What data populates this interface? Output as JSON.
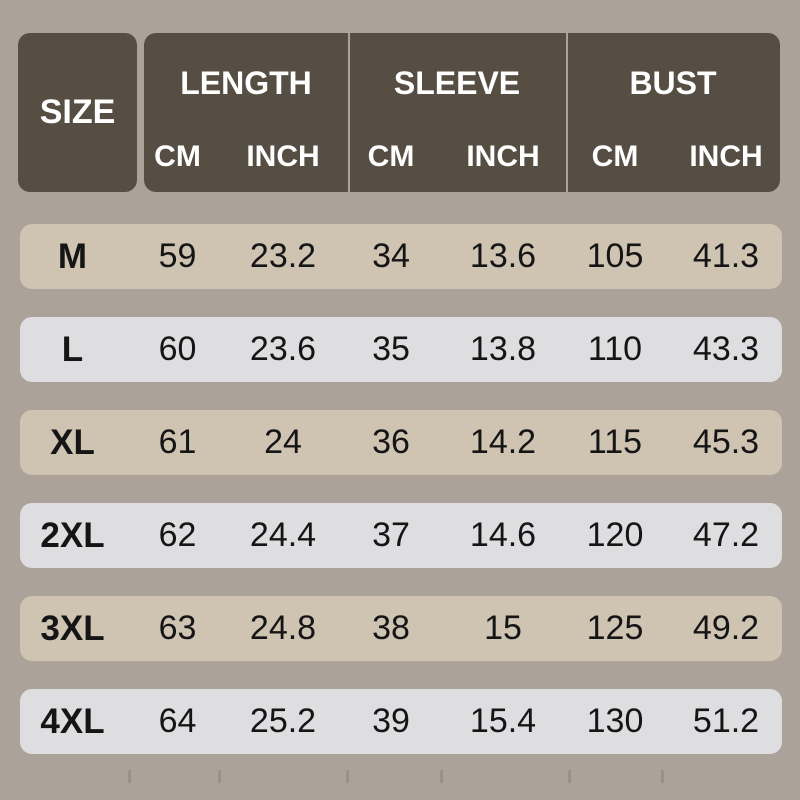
{
  "colors": {
    "page_bg": "#aba39a",
    "header_bg": "#564e43",
    "header_text": "#ffffff",
    "row_tan": "#cfc3b2",
    "row_gray": "#dedde0",
    "data_text": "#151515"
  },
  "chart_data": {
    "type": "table",
    "corner_header": "SIZE",
    "column_groups": [
      {
        "label": "LENGTH",
        "subcolumns": [
          "CM",
          "INCH"
        ]
      },
      {
        "label": "SLEEVE",
        "subcolumns": [
          "CM",
          "INCH"
        ]
      },
      {
        "label": "BUST",
        "subcolumns": [
          "CM",
          "INCH"
        ]
      }
    ],
    "rows": [
      {
        "size": "M",
        "values": [
          "59",
          "23.2",
          "34",
          "13.6",
          "105",
          "41.3"
        ]
      },
      {
        "size": "L",
        "values": [
          "60",
          "23.6",
          "35",
          "13.8",
          "110",
          "43.3"
        ]
      },
      {
        "size": "XL",
        "values": [
          "61",
          "24",
          "36",
          "14.2",
          "115",
          "45.3"
        ]
      },
      {
        "size": "2XL",
        "values": [
          "62",
          "24.4",
          "37",
          "14.6",
          "120",
          "47.2"
        ]
      },
      {
        "size": "3XL",
        "values": [
          "63",
          "24.8",
          "38",
          "15",
          "125",
          "49.2"
        ]
      },
      {
        "size": "4XL",
        "values": [
          "64",
          "25.2",
          "39",
          "15.4",
          "130",
          "51.2"
        ]
      }
    ],
    "layout_hints": {
      "row_striping": "alternating tan and light-gray rounded bars",
      "header_position": "top, dark rounded blocks with white bold text"
    }
  }
}
